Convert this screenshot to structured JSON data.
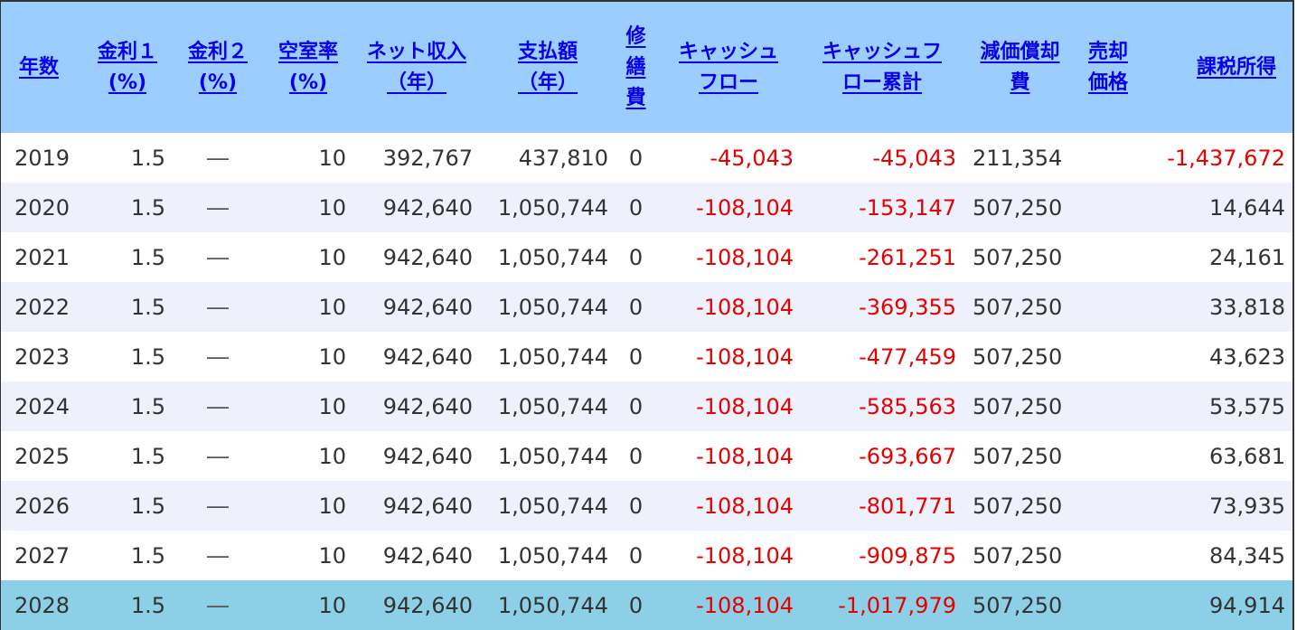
{
  "headers": {
    "year": "年数",
    "rate1": "金利１\n(%)",
    "rate2": "金利２\n(%)",
    "vacancy": "空室率\n(%)",
    "net_income": "ネット収入\n（年）",
    "payment": "支払額\n（年）",
    "repair": "修\n繕\n費",
    "cashflow": "キャッシュ\nフロー",
    "cashflow_cum": "キャッシュフ\nロー累計",
    "depreciation": "減価償却\n費",
    "sale_price": "売却\n価格",
    "taxable_income": "課税所得"
  },
  "rows": [
    {
      "year": "2019",
      "rate1": "1.5",
      "rate2": "―",
      "vacancy": "10",
      "net": "392,767",
      "payment": "437,810",
      "repair": "0",
      "cf": "-45,043",
      "cfcum": "-45,043",
      "dep": "211,354",
      "sale": "",
      "tax": "-1,437,672"
    },
    {
      "year": "2020",
      "rate1": "1.5",
      "rate2": "―",
      "vacancy": "10",
      "net": "942,640",
      "payment": "1,050,744",
      "repair": "0",
      "cf": "-108,104",
      "cfcum": "-153,147",
      "dep": "507,250",
      "sale": "",
      "tax": "14,644"
    },
    {
      "year": "2021",
      "rate1": "1.5",
      "rate2": "―",
      "vacancy": "10",
      "net": "942,640",
      "payment": "1,050,744",
      "repair": "0",
      "cf": "-108,104",
      "cfcum": "-261,251",
      "dep": "507,250",
      "sale": "",
      "tax": "24,161"
    },
    {
      "year": "2022",
      "rate1": "1.5",
      "rate2": "―",
      "vacancy": "10",
      "net": "942,640",
      "payment": "1,050,744",
      "repair": "0",
      "cf": "-108,104",
      "cfcum": "-369,355",
      "dep": "507,250",
      "sale": "",
      "tax": "33,818"
    },
    {
      "year": "2023",
      "rate1": "1.5",
      "rate2": "―",
      "vacancy": "10",
      "net": "942,640",
      "payment": "1,050,744",
      "repair": "0",
      "cf": "-108,104",
      "cfcum": "-477,459",
      "dep": "507,250",
      "sale": "",
      "tax": "43,623"
    },
    {
      "year": "2024",
      "rate1": "1.5",
      "rate2": "―",
      "vacancy": "10",
      "net": "942,640",
      "payment": "1,050,744",
      "repair": "0",
      "cf": "-108,104",
      "cfcum": "-585,563",
      "dep": "507,250",
      "sale": "",
      "tax": "53,575"
    },
    {
      "year": "2025",
      "rate1": "1.5",
      "rate2": "―",
      "vacancy": "10",
      "net": "942,640",
      "payment": "1,050,744",
      "repair": "0",
      "cf": "-108,104",
      "cfcum": "-693,667",
      "dep": "507,250",
      "sale": "",
      "tax": "63,681"
    },
    {
      "year": "2026",
      "rate1": "1.5",
      "rate2": "―",
      "vacancy": "10",
      "net": "942,640",
      "payment": "1,050,744",
      "repair": "0",
      "cf": "-108,104",
      "cfcum": "-801,771",
      "dep": "507,250",
      "sale": "",
      "tax": "73,935"
    },
    {
      "year": "2027",
      "rate1": "1.5",
      "rate2": "―",
      "vacancy": "10",
      "net": "942,640",
      "payment": "1,050,744",
      "repair": "0",
      "cf": "-108,104",
      "cfcum": "-909,875",
      "dep": "507,250",
      "sale": "",
      "tax": "84,345"
    },
    {
      "year": "2028",
      "rate1": "1.5",
      "rate2": "―",
      "vacancy": "10",
      "net": "942,640",
      "payment": "1,050,744",
      "repair": "0",
      "cf": "-108,104",
      "cfcum": "-1,017,979",
      "dep": "507,250",
      "sale": "",
      "tax": "94,914"
    }
  ],
  "colors": {
    "header_bg": "#9ccdff",
    "header_link": "#0a00e6",
    "negative": "#e60000",
    "row_alt": "#eef1fb",
    "row_highlight": "#8ccfe7"
  }
}
